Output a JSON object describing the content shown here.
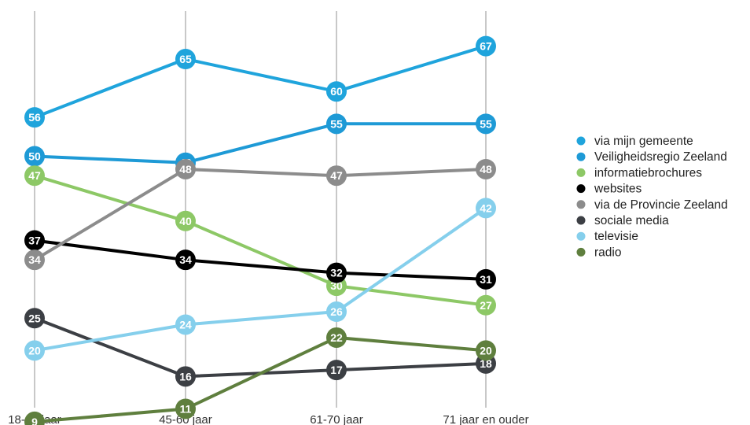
{
  "chart_data": {
    "type": "line",
    "categories": [
      "18-45 jaar",
      "45-60 jaar",
      "61-70 jaar",
      "71 jaar en ouder"
    ],
    "ylim": [
      0,
      70
    ],
    "grid": "vertical",
    "legend_position": "right",
    "series": [
      {
        "name": "via mijn gemeente",
        "color": "#1fa4dc",
        "values": [
          56,
          65,
          60,
          67
        ]
      },
      {
        "name": "Veiligheidsregio Zeeland",
        "color": "#1e9ad6",
        "values": [
          50,
          49,
          55,
          55
        ]
      },
      {
        "name": "informatiebrochures",
        "color": "#8dc866",
        "values": [
          47,
          40,
          30,
          27
        ]
      },
      {
        "name": "websites",
        "color": "#000000",
        "values": [
          37,
          34,
          32,
          31
        ]
      },
      {
        "name": "via de Provincie Zeeland",
        "color": "#8c8c8c",
        "values": [
          34,
          48,
          47,
          48
        ]
      },
      {
        "name": "sociale media",
        "color": "#3c3f44",
        "values": [
          25,
          16,
          17,
          18
        ]
      },
      {
        "name": "televisie",
        "color": "#85cfec",
        "values": [
          20,
          24,
          26,
          42
        ]
      },
      {
        "name": "radio",
        "color": "#5f7f3e",
        "values": [
          9,
          11,
          22,
          20
        ]
      }
    ]
  }
}
